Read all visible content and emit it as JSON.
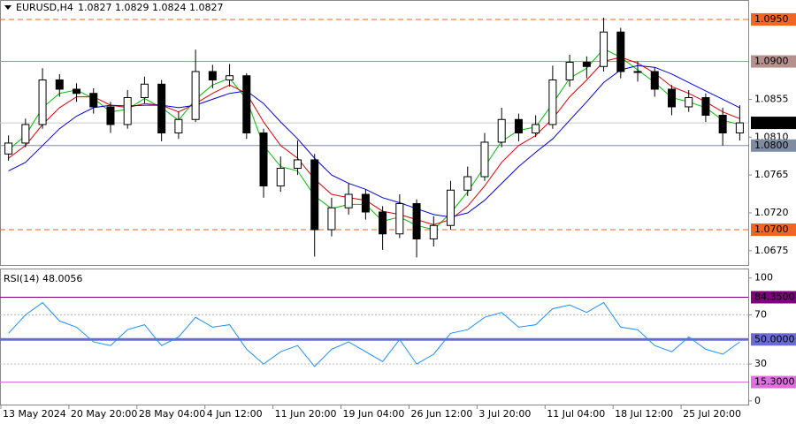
{
  "chart_data": [
    {
      "type": "candlestick",
      "title": "EURUSD,H4",
      "quote": "1.0827 1.0829 1.0824 1.0827",
      "categories": [
        "13 May 2024",
        null,
        null,
        null,
        "20 May 20:00",
        null,
        null,
        null,
        "28 May 04:00",
        null,
        null,
        null,
        "4 Jun 12:00",
        null,
        null,
        null,
        "11 Jun 20:00",
        null,
        null,
        null,
        "19 Jun 04:00",
        null,
        null,
        null,
        "26 Jun 12:00",
        null,
        null,
        null,
        "3 Jul 20:00",
        null,
        null,
        null,
        "11 Jul 04:00",
        null,
        null,
        null,
        "18 Jul 12:00",
        null,
        null,
        null,
        "25 Jul 20:00",
        null,
        null,
        null
      ],
      "ohlc": [
        [
          1.079,
          1.0812,
          1.0782,
          1.0803
        ],
        [
          1.0803,
          1.0832,
          1.0798,
          1.0825
        ],
        [
          1.0825,
          1.0892,
          1.082,
          1.0878
        ],
        [
          1.0878,
          1.0885,
          1.0858,
          1.0867
        ],
        [
          1.0867,
          1.0874,
          1.0852,
          1.0862
        ],
        [
          1.0862,
          1.0868,
          1.0838,
          1.0846
        ],
        [
          1.0846,
          1.0852,
          1.0815,
          1.0825
        ],
        [
          1.0825,
          1.0866,
          1.082,
          1.0857
        ],
        [
          1.0857,
          1.0882,
          1.085,
          1.0873
        ],
        [
          1.0873,
          1.0878,
          1.0805,
          1.0815
        ],
        [
          1.0815,
          1.084,
          1.0808,
          1.0831
        ],
        [
          1.0831,
          1.0914,
          1.0828,
          1.0888
        ],
        [
          1.0888,
          1.0896,
          1.0868,
          1.0878
        ],
        [
          1.0878,
          1.0897,
          1.087,
          1.0883
        ],
        [
          1.0883,
          1.0886,
          1.0808,
          1.0815
        ],
        [
          1.0815,
          1.082,
          1.0738,
          1.0752
        ],
        [
          1.0752,
          1.0787,
          1.0745,
          1.0773
        ],
        [
          1.0773,
          1.0806,
          1.0765,
          1.0783
        ],
        [
          1.0783,
          1.079,
          1.0668,
          1.07
        ],
        [
          1.07,
          1.0738,
          1.0692,
          1.0726
        ],
        [
          1.0726,
          1.0755,
          1.0718,
          1.0742
        ],
        [
          1.0742,
          1.0748,
          1.0712,
          1.0721
        ],
        [
          1.0721,
          1.0728,
          1.0676,
          1.0695
        ],
        [
          1.0695,
          1.0742,
          1.069,
          1.0731
        ],
        [
          1.0731,
          1.0736,
          1.0667,
          1.0689
        ],
        [
          1.0689,
          1.0716,
          1.068,
          1.0705
        ],
        [
          1.0705,
          1.0758,
          1.07,
          1.0747
        ],
        [
          1.0747,
          1.0775,
          1.074,
          1.0763
        ],
        [
          1.0763,
          1.0815,
          1.0758,
          1.0804
        ],
        [
          1.0804,
          1.0845,
          1.0798,
          1.0831
        ],
        [
          1.0831,
          1.0838,
          1.0805,
          1.0815
        ],
        [
          1.0815,
          1.0836,
          1.081,
          1.0825
        ],
        [
          1.0825,
          1.0895,
          1.082,
          1.0878
        ],
        [
          1.0878,
          1.0908,
          1.087,
          1.0899
        ],
        [
          1.0899,
          1.0906,
          1.088,
          1.0894
        ],
        [
          1.0894,
          1.0952,
          1.0888,
          1.0935
        ],
        [
          1.0935,
          1.094,
          1.088,
          1.0888
        ],
        [
          1.0888,
          1.09,
          1.0876,
          1.0888
        ],
        [
          1.0888,
          1.0893,
          1.0858,
          1.0867
        ],
        [
          1.0867,
          1.0872,
          1.0836,
          1.0846
        ],
        [
          1.0846,
          1.0866,
          1.084,
          1.0857
        ],
        [
          1.0857,
          1.0862,
          1.0828,
          1.0836
        ],
        [
          1.0836,
          1.0845,
          1.08,
          1.0815
        ],
        [
          1.0815,
          1.0848,
          1.0806,
          1.0827
        ]
      ],
      "series": [
        {
          "color": "#00c000",
          "values": [
            1.0795,
            1.0812,
            1.0845,
            1.0862,
            1.0866,
            1.0856,
            1.084,
            1.0843,
            1.0856,
            1.0845,
            1.083,
            1.0855,
            1.0872,
            1.088,
            1.0855,
            1.08,
            1.0775,
            1.077,
            1.074,
            1.0725,
            1.073,
            1.073,
            1.071,
            1.0715,
            1.0705,
            1.07,
            1.072,
            1.0745,
            1.0775,
            1.0805,
            1.0818,
            1.0822,
            1.085,
            1.088,
            1.0892,
            1.0915,
            1.0905,
            1.089,
            1.0875,
            1.0857,
            1.0852,
            1.0845,
            1.083,
            1.0825
          ]
        },
        {
          "color": "#e00000",
          "values": [
            1.0785,
            1.08,
            1.0825,
            1.0845,
            1.0858,
            1.0858,
            1.0848,
            1.0845,
            1.085,
            1.0848,
            1.084,
            1.085,
            1.0862,
            1.0872,
            1.0862,
            1.0828,
            1.08,
            1.0785,
            1.076,
            1.0742,
            1.0738,
            1.0735,
            1.0722,
            1.0718,
            1.0712,
            1.0706,
            1.0712,
            1.0728,
            1.0752,
            1.078,
            1.08,
            1.0812,
            1.0832,
            1.0858,
            1.0878,
            1.09,
            1.0905,
            1.0898,
            1.0886,
            1.087,
            1.0862,
            1.0852,
            1.084,
            1.0832
          ]
        },
        {
          "color": "#0000e0",
          "values": [
            1.077,
            1.078,
            1.08,
            1.082,
            1.0835,
            1.0845,
            1.0848,
            1.0847,
            1.0848,
            1.0848,
            1.0845,
            1.0848,
            1.0855,
            1.0862,
            1.0865,
            1.085,
            1.0828,
            1.0808,
            1.0785,
            1.0765,
            1.0755,
            1.0748,
            1.0738,
            1.0732,
            1.0725,
            1.0718,
            1.0715,
            1.072,
            1.0735,
            1.0755,
            1.0775,
            1.0792,
            1.0808,
            1.083,
            1.0852,
            1.0875,
            1.089,
            1.0895,
            1.0893,
            1.0885,
            1.0875,
            1.0865,
            1.0855,
            1.0845
          ]
        }
      ],
      "ylim": [
        1.0658,
        1.0972
      ],
      "yticks": [
        1.0855,
        {
          "value": 1.081,
          "label": "1.0810"
        },
        1.0765,
        {
          "value": 1.072,
          "label": "1.0720"
        },
        1.0675
      ],
      "levels": [
        {
          "value": 1.095,
          "label": "1.0950",
          "line_color": "#f26522",
          "box_color": "#f26522",
          "style": "dashed"
        },
        {
          "value": 1.09,
          "label": "1.0900",
          "line_color": "#b5908c",
          "box_color": "#b5908c",
          "style": "solid"
        },
        {
          "value": 1.0827,
          "label": "1.0827",
          "line_color": "#c8c8c8",
          "box_color": "#000000",
          "style": "solid"
        },
        {
          "value": 1.08,
          "label": "1.0800",
          "line_color": "#7d8ca3",
          "box_color": "#7d8ca3",
          "style": "solid"
        },
        {
          "value": 1.07,
          "label": "1.0700",
          "line_color": "#f26522",
          "box_color": "#f26522",
          "style": "dashed"
        }
      ]
    },
    {
      "type": "line",
      "title": "RSI(14) 48.0056",
      "color": "#1e90ff",
      "values": [
        55,
        70,
        80,
        65,
        60,
        48,
        45,
        58,
        62,
        45,
        52,
        68,
        60,
        62,
        42,
        30,
        40,
        45,
        28,
        42,
        48,
        40,
        32,
        50,
        30,
        38,
        55,
        58,
        68,
        72,
        60,
        62,
        75,
        78,
        72,
        80,
        60,
        58,
        45,
        40,
        52,
        42,
        38,
        48
      ],
      "ylim": [
        -3,
        107
      ],
      "yticks": [
        100,
        70,
        30,
        0
      ],
      "dotted_ticks": [
        70,
        30
      ],
      "levels": [
        {
          "value": 84.35,
          "label": "84.3500",
          "line_color": "#800080",
          "box_color": "#800080",
          "width": 1
        },
        {
          "value": 50,
          "label": "50.0000",
          "line_color": "#6a6ad8",
          "box_color": "#6a6ad8",
          "width": 3
        },
        {
          "value": 15.3,
          "label": "15.3000",
          "line_color": "#e070e0",
          "box_color": "#e070e0",
          "width": 1
        }
      ]
    }
  ]
}
